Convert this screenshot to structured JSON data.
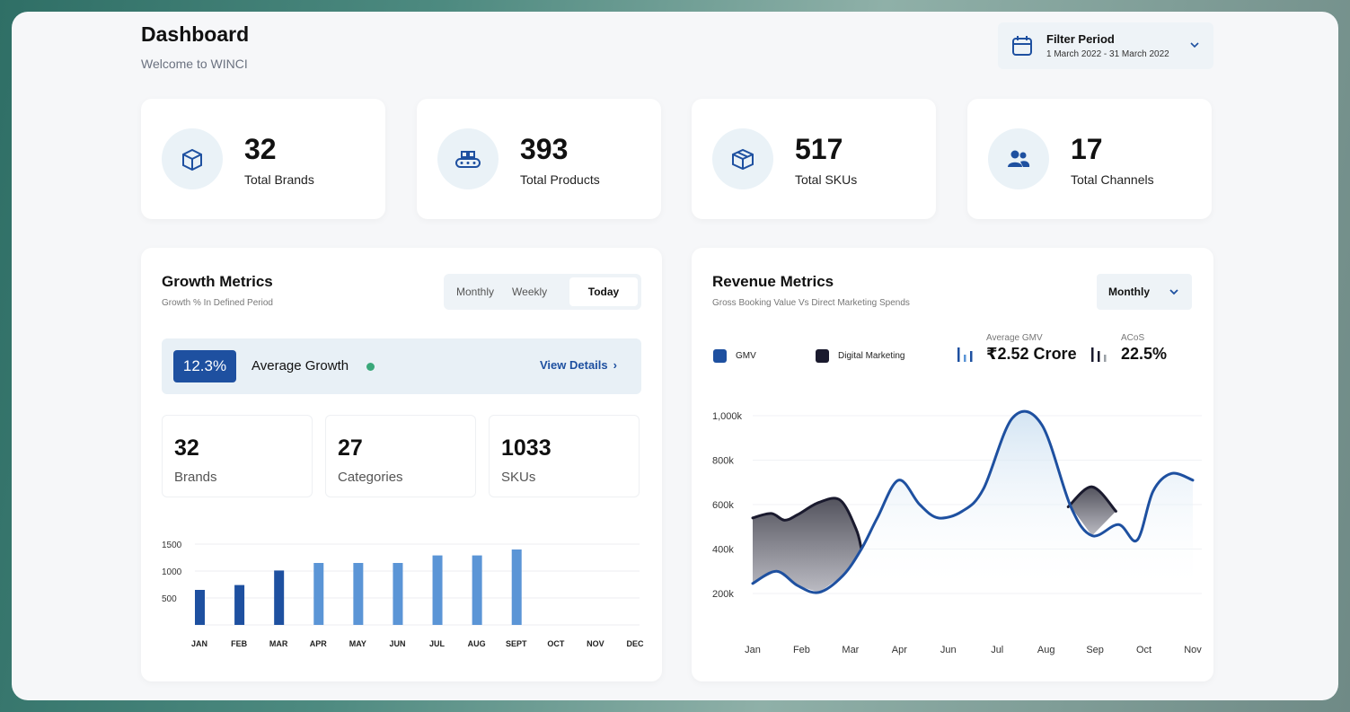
{
  "header": {
    "title": "Dashboard",
    "subtitle": "Welcome to WINCI",
    "filter_title": "Filter Period",
    "filter_range": "1 March 2022 - 31 March 2022"
  },
  "stats": [
    {
      "value": "32",
      "label": "Total Brands",
      "icon": "box-icon"
    },
    {
      "value": "393",
      "label": "Total Products",
      "icon": "conveyor-icon"
    },
    {
      "value": "517",
      "label": "Total SKUs",
      "icon": "package-icon"
    },
    {
      "value": "17",
      "label": "Total Channels",
      "icon": "users-icon"
    }
  ],
  "growth": {
    "title": "Growth Metrics",
    "subtitle": "Growth % In Defined Period",
    "tabs": [
      "Monthly",
      "Weekly",
      "Today"
    ],
    "active_tab": "Today",
    "average_badge": "12.3%",
    "average_label": "Average Growth",
    "view_details": "View Details",
    "minis": [
      {
        "value": "32",
        "label": "Brands"
      },
      {
        "value": "27",
        "label": "Categories"
      },
      {
        "value": "1033",
        "label": "SKUs"
      }
    ],
    "accent": "#1e50a0",
    "status_color": "#3aa87a"
  },
  "revenue": {
    "title": "Revenue Metrics",
    "subtitle": "Gross Booking Value Vs Direct Marketing Spends",
    "dropdown": "Monthly",
    "legend": [
      {
        "name": "GMV",
        "color": "#1e50a0"
      },
      {
        "name": "Digital Marketing",
        "color": "#1a1a2e"
      }
    ],
    "kpis": [
      {
        "label": "Average GMV",
        "value": "₹2.52 Crore"
      },
      {
        "label": "ACoS",
        "value": "22.5%"
      }
    ]
  },
  "chart_data": [
    {
      "type": "bar",
      "categories": [
        "JAN",
        "FEB",
        "MAR",
        "APR",
        "MAY",
        "JUN",
        "JUL",
        "AUG",
        "SEPT",
        "OCT",
        "NOV",
        "DEC"
      ],
      "values": [
        650,
        740,
        1010,
        1150,
        1150,
        1150,
        1290,
        1290,
        1400,
        null,
        null,
        null
      ],
      "yticks": [
        "1500",
        "1000",
        "500"
      ],
      "ylim": [
        0,
        1500
      ],
      "colors": [
        "#1e50a0",
        "#1e50a0",
        "#1e50a0",
        "#5b95d6",
        "#5b95d6",
        "#5b95d6",
        "#5b95d6",
        "#5b95d6",
        "#5b95d6"
      ],
      "grid": true
    },
    {
      "type": "line",
      "categories": [
        "Jan",
        "Feb",
        "Mar",
        "Apr",
        "Jun",
        "Jul",
        "Aug",
        "Sep",
        "Oct",
        "Nov"
      ],
      "yticks": [
        "1,000k",
        "800k",
        "600k",
        "400k",
        "200k"
      ],
      "ylim": [
        200,
        1000
      ],
      "series": [
        {
          "name": "GMV",
          "color": "#1e50a0",
          "points": [
            [
              0,
              245
            ],
            [
              0.45,
              300
            ],
            [
              0.85,
              235
            ],
            [
              1.25,
              205
            ],
            [
              1.7,
              280
            ],
            [
              2.05,
              400
            ],
            [
              2.35,
              540
            ],
            [
              2.75,
              710
            ],
            [
              3.15,
              600
            ],
            [
              3.5,
              540
            ],
            [
              3.95,
              570
            ],
            [
              4.35,
              670
            ],
            [
              4.9,
              990
            ],
            [
              5.45,
              960
            ],
            [
              6.0,
              590
            ],
            [
              6.4,
              460
            ],
            [
              6.9,
              510
            ],
            [
              7.25,
              440
            ],
            [
              7.55,
              660
            ],
            [
              7.9,
              740
            ],
            [
              8.3,
              710
            ]
          ]
        },
        {
          "name": "Digital Marketing",
          "color": "#1a1a2e",
          "segments": [
            [
              [
                0,
                540
              ],
              [
                0.35,
                560
              ],
              [
                0.6,
                530
              ],
              [
                0.85,
                555
              ],
              [
                1.25,
                610
              ],
              [
                1.65,
                620
              ],
              [
                1.95,
                490
              ],
              [
                2.05,
                400
              ]
            ],
            [
              [
                5.95,
                590
              ],
              [
                6.4,
                680
              ],
              [
                6.85,
                570
              ]
            ]
          ]
        }
      ],
      "grid": true
    }
  ]
}
